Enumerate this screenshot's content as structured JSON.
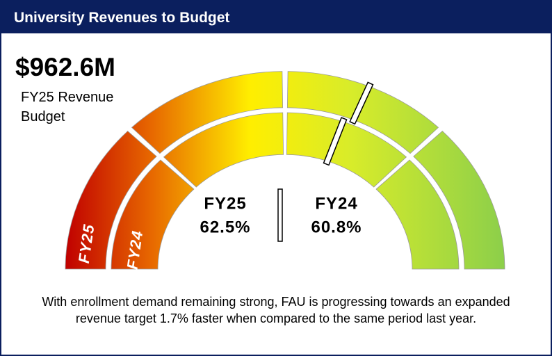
{
  "chart_data": {
    "type": "gauge",
    "title": "University Revenues to Budget",
    "headline": "$962.6M",
    "subtitle": "FY25 Revenue Budget",
    "ylim": [
      0,
      100
    ],
    "series": [
      {
        "name": "FY25",
        "values": [
          62.5
        ],
        "value_labels": [
          "62.5%"
        ]
      },
      {
        "name": "FY24",
        "values": [
          60.8
        ],
        "value_labels": [
          "60.8%"
        ]
      }
    ],
    "annotation": "With enrollment demand remaining strong, FAU is progressing towards an expanded revenue target 1.7% faster when compared to the same period last year."
  }
}
